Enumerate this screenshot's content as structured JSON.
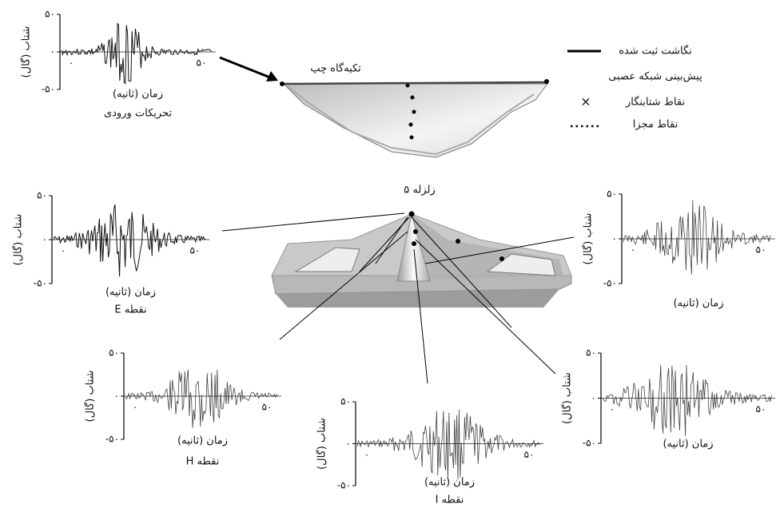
{
  "legend": {
    "items": [
      {
        "label": "نگاشت ثبت شده"
      },
      {
        "label": "پیش‌بینی شبکه عصبی"
      },
      {
        "label": "نقاط شتابنگار"
      },
      {
        "label": "نقاط مجزا"
      }
    ]
  },
  "dam_section": {
    "label": "تکیه‌گاه چپ"
  },
  "dam_model": {
    "label": "زلزله ۵"
  },
  "plots": [
    {
      "y_label": "شتاب (گال)",
      "x_label": "زمان (ثانیه)",
      "caption": "تحریکات ورودی",
      "yticks": [
        "۵۰",
        "۰",
        "-۵۰"
      ],
      "xticks": [
        "۰",
        "۵۰"
      ]
    },
    {
      "y_label": "شتاب (گال)",
      "x_label": "زمان (ثانیه)",
      "caption": "نقطه E",
      "yticks": [
        "۵۰",
        "۰",
        "-۵۰"
      ],
      "xticks": [
        "۰",
        "۵۰"
      ]
    },
    {
      "y_label": "شتاب (گال)",
      "x_label": "زمان (ثانیه)",
      "yticks": [
        "۵۰",
        "۰",
        "-۵۰"
      ],
      "xticks": [
        "۰",
        "۵۰"
      ]
    },
    {
      "y_label": "شتاب (گال)",
      "x_label": "زمان (ثانیه)",
      "caption": "نقطه H",
      "yticks": [
        "۵۰",
        "۰",
        "-۵۰"
      ],
      "xticks": [
        "۰",
        "۵۰"
      ]
    },
    {
      "y_label": "شتاب (گال)",
      "x_label": "زمان (ثانیه)",
      "caption": "نقطه I",
      "yticks": [
        "۵۰",
        "۰",
        "-۵۰"
      ],
      "xticks": [
        "۰",
        "۵۰"
      ]
    },
    {
      "y_label": "شتاب (گال)",
      "x_label": "زمان (ثانیه)",
      "yticks": [
        "۵۰",
        "۰",
        "-۵۰"
      ],
      "xticks": [
        "۰",
        "۵۰"
      ]
    }
  ]
}
